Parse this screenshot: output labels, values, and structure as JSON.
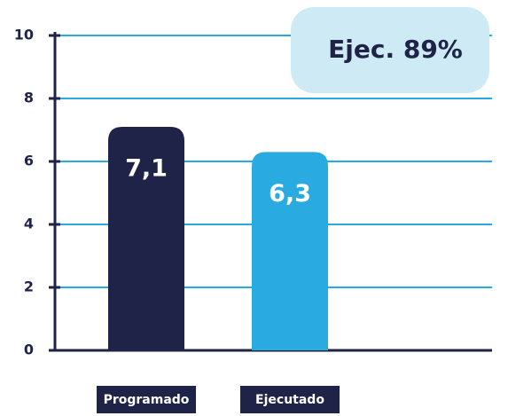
{
  "chart_data": {
    "type": "bar",
    "categories": [
      "Programado",
      "Ejecutado"
    ],
    "series": [
      {
        "name": null,
        "colors": [
          "#1f2347",
          "#29abe2"
        ],
        "values": [
          7.1,
          6.3
        ],
        "value_labels": [
          "7,1",
          "6,3"
        ]
      }
    ],
    "annotation": "Ejec. 89%",
    "ylim": [
      0,
      10
    ],
    "yticks": [
      0,
      2,
      4,
      6,
      8,
      10
    ],
    "grid": true,
    "grid_color": "#29abe2"
  }
}
